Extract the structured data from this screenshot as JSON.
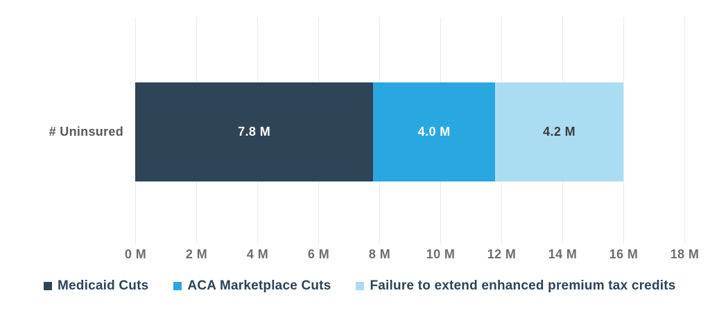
{
  "chart_data": {
    "type": "bar",
    "orientation": "horizontal",
    "stacked": true,
    "title": "",
    "categories": [
      "# Uninsured"
    ],
    "series": [
      {
        "name": "Medicaid Cuts",
        "values": [
          7.8
        ],
        "label": "7.8 M",
        "color": "#2e4457",
        "label_color": "#ffffff"
      },
      {
        "name": "ACA Marketplace Cuts",
        "values": [
          4.0
        ],
        "label": "4.0 M",
        "color": "#29a7e1",
        "label_color": "#ffffff"
      },
      {
        "name": "Failure to extend enhanced premium tax credits",
        "values": [
          4.2
        ],
        "label": "4.2 M",
        "color": "#abddf2",
        "label_color": "#3c3c3c"
      }
    ],
    "xlabel": "",
    "ylabel": "",
    "xlim": [
      0,
      18
    ],
    "x_tick_values": [
      0,
      2,
      4,
      6,
      8,
      10,
      12,
      14,
      16,
      18
    ],
    "x_tick_labels": [
      "0 M",
      "2 M",
      "4 M",
      "6 M",
      "8 M",
      "10 M",
      "12 M",
      "14 M",
      "16 M",
      "18 M"
    ],
    "grid": "vertical",
    "legend_position": "bottom",
    "colors": {
      "background": "#ffffff",
      "grid_line": "#e9e9e9",
      "axis_text": "#6d6d6d",
      "category_text": "#595959",
      "legend_text": "#2d4357"
    }
  }
}
